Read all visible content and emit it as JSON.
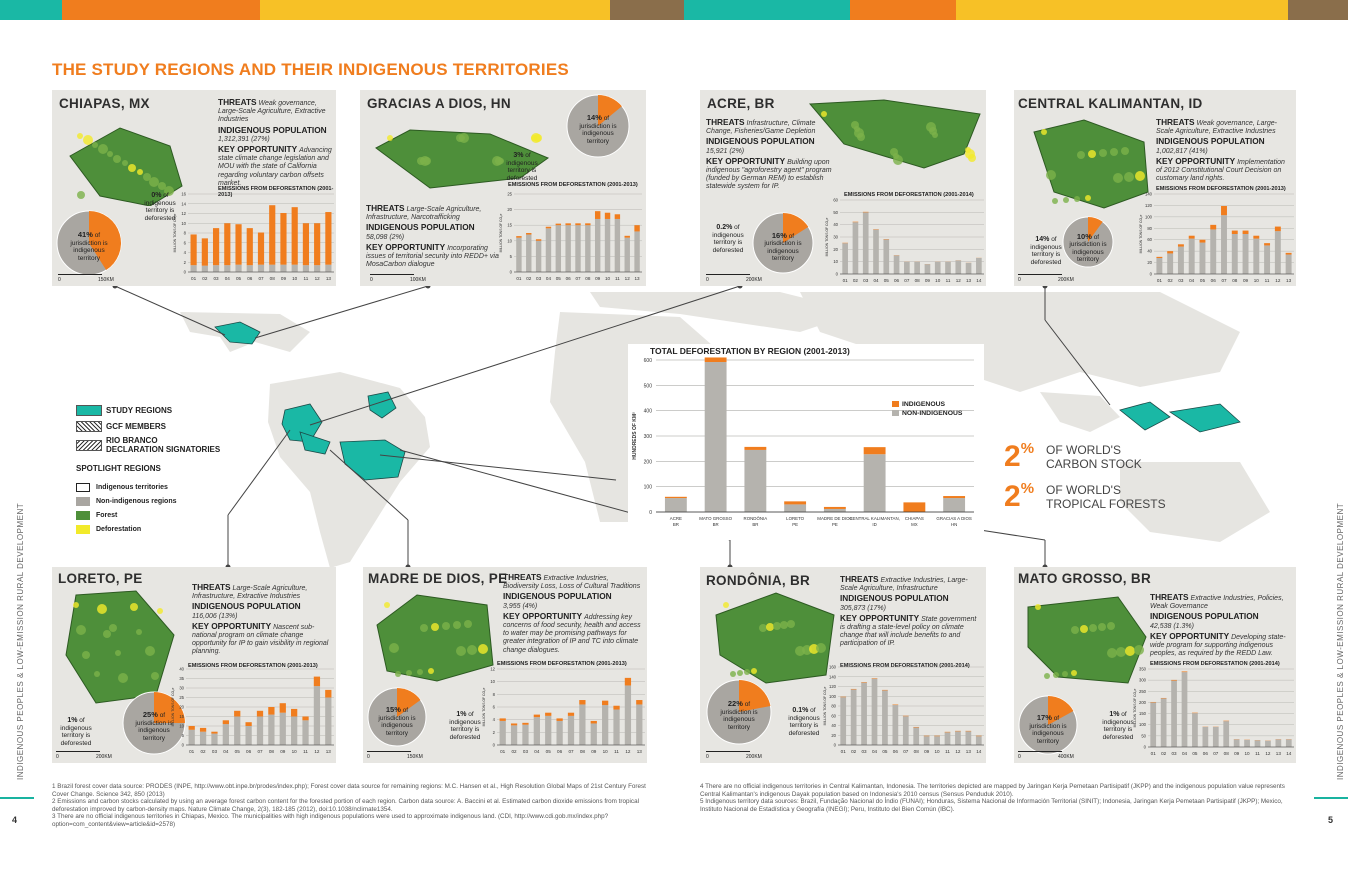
{
  "header": {
    "title": "THE STUDY REGIONS AND THEIR INDIGENOUS TERRITORIES"
  },
  "colors": {
    "teal": "#1ab8a5",
    "orange": "#f07d1e",
    "yellow": "#f7c126",
    "brown": "#8a6e4b",
    "bar_grey": "#b5b3ae",
    "forest": "#4e8f3a",
    "deforest": "#f2ea2a"
  },
  "regions": [
    {
      "id": "chiapas",
      "name": "CHIAPAS, MX",
      "threats": "Weak governance, Large-Scale Agriculture, Extractive Industries",
      "pop_label": "INDIGENOUS POPULATION",
      "pop": "1,312,391 (27%)",
      "opp": "Advancing state climate change legislation and MOU with the state of California regarding voluntary carbon offsets market.",
      "pie_pct": "41%",
      "pie_text": "of jurisdiction is indigenous territory",
      "def_pct": "0%",
      "def_text": "of indigenous territory is deforested",
      "em_title": "EMISSIONS FROM DEFORESTATION (2001-2013)",
      "ylabel": "MILLION TONS OF CO₂e",
      "scale": "150KM",
      "x": [
        "01",
        "02",
        "03",
        "04",
        "05",
        "06",
        "07",
        "08",
        "09",
        "10",
        "11",
        "12",
        "13"
      ],
      "non": [
        1.4,
        1.3,
        1.4,
        1.4,
        1.5,
        1.4,
        1.5,
        1.5,
        1.5,
        1.5,
        1.4,
        1.4,
        1.5
      ],
      "ind": [
        6.3,
        5.6,
        7.6,
        8.6,
        8.3,
        7.6,
        6.6,
        12.2,
        10.6,
        11.8,
        8.6,
        8.6,
        10.8
      ],
      "ymax": 16,
      "yticks": [
        0,
        2,
        4,
        6,
        8,
        10,
        12,
        14,
        16
      ],
      "pie_ratio": 0.41
    },
    {
      "id": "gracias",
      "name": "GRACIAS A DIOS, HN",
      "threats": "Large-Scale Agriculture, Infrastructure, Narcotrafficking",
      "pop_label": "INDIGENOUS POPULATION",
      "pop": "58,098 (2%)",
      "opp": "Incorporating issues of territorial security into REDD+ via MosaCarbon dialogue",
      "pie_pct": "14%",
      "pie_text": "of jurisdiction is indigenous territory",
      "def_pct": "3%",
      "def_text": "of indigenous territory is deforested",
      "em_title": "EMISSIONS FROM DEFORESTATION (2001-2013)",
      "ylabel": "MILLION TONS OF CO₂e",
      "scale": "100KM",
      "x": [
        "01",
        "02",
        "03",
        "04",
        "05",
        "06",
        "07",
        "08",
        "09",
        "10",
        "11",
        "12",
        "13"
      ],
      "non": [
        11,
        12,
        10,
        14,
        15,
        15,
        15,
        15,
        17,
        17,
        17,
        11,
        13
      ],
      "ind": [
        0.5,
        0.5,
        0.5,
        0.5,
        0.5,
        0.6,
        0.6,
        0.6,
        2.5,
        2,
        1.5,
        0.6,
        2
      ],
      "ymax": 25,
      "yticks": [
        0,
        5,
        10,
        15,
        20,
        25
      ],
      "pie_ratio": 0.14
    },
    {
      "id": "acre",
      "name": "ACRE, BR",
      "threats": "Infrastructure, Climate Change, Fisheries/Game Depletion",
      "pop_label": "INDIGENOUS POPULATION",
      "pop": "15,921 (2%)",
      "opp": "Building upon indigenous \"agroforestry agent\" program (funded by German REM) to establish statewide system for IP.",
      "pie_pct": "16%",
      "pie_text": "of jurisdiction is indigenous territory",
      "def_pct": "0.2%",
      "def_text": "of indigenous territory is deforested",
      "em_title": "EMISSIONS FROM DEFORESTATION (2001-2014)",
      "ylabel": "MILLION TONS OF CO₂e",
      "scale": "200KM",
      "x": [
        "01",
        "02",
        "03",
        "04",
        "05",
        "06",
        "07",
        "08",
        "09",
        "10",
        "11",
        "12",
        "13",
        "14"
      ],
      "non": [
        25,
        42,
        50,
        36,
        28,
        15,
        10,
        10,
        8,
        10,
        10,
        11,
        9,
        13
      ],
      "ind": [
        0.3,
        0.4,
        0.4,
        0.3,
        0.3,
        0.2,
        0.1,
        0.1,
        0.1,
        0.1,
        0.1,
        0.1,
        0.1,
        0.1
      ],
      "ymax": 60,
      "yticks": [
        0,
        10,
        20,
        30,
        40,
        50,
        60
      ],
      "pie_ratio": 0.16
    },
    {
      "id": "kalimantan",
      "name": "CENTRAL KALIMANTAN, ID",
      "threats": "Weak governance, Large-Scale Agriculture, Extractive Industries",
      "pop_label": "INDIGENOUS POPULATION",
      "pop": "1,002,817 (41%)",
      "opp": "Implementation of 2012 Constitutional Court Decision on customary land rights.",
      "pie_pct": "10%",
      "pie_text": "of jurisdiction is indigenous territory",
      "def_pct": "14%",
      "def_text": "of indigenous territory is deforested",
      "em_title": "EMISSIONS FROM DEFORESTATION (2001-2013)",
      "ylabel": "MILLION TONS OF CO₂e",
      "scale": "200KM",
      "x": [
        "01",
        "02",
        "03",
        "04",
        "05",
        "06",
        "07",
        "08",
        "09",
        "10",
        "11",
        "12",
        "13"
      ],
      "non": [
        28,
        36,
        48,
        62,
        55,
        78,
        103,
        70,
        70,
        62,
        50,
        75,
        34
      ],
      "ind": [
        2,
        4,
        4,
        5,
        5,
        8,
        16,
        6,
        6,
        5,
        4,
        8,
        3
      ],
      "ymax": 140,
      "yticks": [
        0,
        20,
        40,
        60,
        80,
        100,
        120,
        140
      ],
      "pie_ratio": 0.1
    },
    {
      "id": "loreto",
      "name": "LORETO, PE",
      "threats": "Large-Scale Agriculture, Infrastructure, Extractive Industries",
      "pop_label": "INDIGENOUS POPULATION",
      "pop": "116,006 (13%)",
      "opp": "Nascent sub-national program on climate change opportunity for IP to gain visibility in regional planning.",
      "pie_pct": "25%",
      "pie_text": "of jurisdiction is indigenous territory",
      "def_pct": "1%",
      "def_text": "of indigenous territory is deforested",
      "em_title": "EMISSIONS FROM DEFORESTATION (2001-2013)",
      "ylabel": "MILLION TONS OF CO₂e",
      "scale": "200KM",
      "x": [
        "01",
        "02",
        "03",
        "04",
        "05",
        "06",
        "07",
        "08",
        "09",
        "10",
        "11",
        "12",
        "13"
      ],
      "non": [
        8,
        7,
        6,
        11,
        15,
        10,
        15,
        16,
        17,
        15,
        13,
        31,
        25
      ],
      "ind": [
        2,
        2,
        1,
        2,
        3,
        2,
        3,
        4,
        5,
        4,
        2,
        5,
        4
      ],
      "ymax": 40,
      "yticks": [
        0,
        5,
        10,
        15,
        20,
        25,
        30,
        35,
        40
      ],
      "pie_ratio": 0.25
    },
    {
      "id": "madre",
      "name": "MADRE DE DIOS, PE",
      "threats": "Extractive Industries, Biodiversity Loss, Loss of Cultural Traditions",
      "pop_label": "INDIGENOUS POPULATION",
      "pop": "3,955 (4%)",
      "opp": "Addressing key concerns of food security, health and access to water may be promising pathways for greater integration of IP and TC into climate change dialogues.",
      "pie_pct": "15%",
      "pie_text": "of jurisdiction is indigenous territory",
      "def_pct": "1%",
      "def_text": "of indigenous territory is deforested",
      "em_title": "EMISSIONS FROM DEFORESTATION (2001-2013)",
      "ylabel": "MILLION TONS OF CO₂e",
      "scale": "150KM",
      "x": [
        "01",
        "02",
        "03",
        "04",
        "05",
        "06",
        "07",
        "08",
        "09",
        "10",
        "11",
        "12",
        "13"
      ],
      "non": [
        3.8,
        3.1,
        3.2,
        4.4,
        4.6,
        3.8,
        4.6,
        6.4,
        3.4,
        6.3,
        5.6,
        9.4,
        6.4
      ],
      "ind": [
        0.4,
        0.3,
        0.3,
        0.4,
        0.5,
        0.4,
        0.5,
        0.7,
        0.4,
        0.7,
        0.6,
        1.2,
        0.7
      ],
      "ymax": 12,
      "yticks": [
        0,
        2,
        4,
        6,
        8,
        10,
        12
      ],
      "pie_ratio": 0.15
    },
    {
      "id": "rondonia",
      "name": "RONDÔNIA, BR",
      "threats": "Extractive Industries, Large-Scale Agriculture, Infrastructure",
      "pop_label": "INDIGENOUS POPULATION",
      "pop": "305,873 (17%)",
      "opp": "State government is drafting a state-level policy on climate change that will include benefits to and participation of IP.",
      "pie_pct": "22%",
      "pie_text": "of jurisdiction is indigenous territory",
      "def_pct": "0.1%",
      "def_text": "of indigenous territory is deforested",
      "em_title": "EMISSIONS FROM DEFORESTATION (2001-2014)",
      "ylabel": "MILLION TONS OF CO₂e",
      "scale": "200KM",
      "x": [
        "01",
        "02",
        "03",
        "04",
        "05",
        "06",
        "07",
        "08",
        "09",
        "10",
        "11",
        "12",
        "13",
        "14"
      ],
      "non": [
        98,
        114,
        128,
        136,
        112,
        82,
        59,
        36,
        18,
        18,
        26,
        28,
        28,
        18
      ],
      "ind": [
        1,
        1,
        1,
        1,
        1,
        1,
        1,
        1,
        1,
        1,
        1,
        1,
        1,
        1
      ],
      "ymax": 160,
      "yticks": [
        0,
        20,
        40,
        60,
        80,
        100,
        120,
        140,
        160
      ],
      "pie_ratio": 0.22
    },
    {
      "id": "mato",
      "name": "MATO GROSSO, BR",
      "threats": "Extractive Industries, Policies, Weak Governance",
      "pop_label": "INDIGENOUS POPULATION",
      "pop": "42,538 (1.3%)",
      "opp": "Developing state-wide program for supporting indigenous peoples, as required by the REDD Law.",
      "pie_pct": "17%",
      "pie_text": "of jurisdiction is indigenous territory",
      "def_pct": "1%",
      "def_text": "of indigenous territory is deforested",
      "em_title": "EMISSIONS FROM DEFORESTATION (2001-2014)",
      "ylabel": "MILLION TONS OF CO₂e",
      "scale": "400KM",
      "x": [
        "01",
        "02",
        "03",
        "04",
        "05",
        "06",
        "07",
        "08",
        "09",
        "10",
        "11",
        "12",
        "13",
        "14"
      ],
      "non": [
        200,
        218,
        298,
        336,
        152,
        90,
        90,
        116,
        34,
        32,
        30,
        28,
        34,
        34
      ],
      "ind": [
        2,
        2,
        3,
        3,
        2,
        1,
        1,
        2,
        1,
        1,
        1,
        1,
        1,
        1
      ],
      "ymax": 350,
      "yticks": [
        0,
        50,
        100,
        150,
        200,
        250,
        300,
        350
      ],
      "pie_ratio": 0.17
    }
  ],
  "labels": {
    "threats": "THREATS",
    "pop": "INDIGENOUS POPULATION",
    "opp": "KEY OPPORTUNITY"
  },
  "chart_data": {
    "type": "bar",
    "title": "TOTAL DEFORESTATION BY REGION (2001-2013)",
    "ylabel": "HUNDREDS OF KM²",
    "ylim": [
      0,
      600
    ],
    "yticks": [
      0,
      100,
      200,
      300,
      400,
      500,
      600
    ],
    "categories": [
      "ACRE BR",
      "MATO GROSSO BR",
      "RONDÔNIA BR",
      "LORETO PE",
      "MADRE DE DIOS PE",
      "CENTRAL KALIMANTAN, ID",
      "CHIAPAS MX",
      "GRACIAS A DIOS HN"
    ],
    "series": [
      {
        "name": "NON-INDIGENOUS",
        "values": [
          55,
          592,
          245,
          30,
          12,
          228,
          0,
          55
        ]
      },
      {
        "name": "INDIGENOUS",
        "values": [
          5,
          18,
          12,
          12,
          8,
          28,
          38,
          8
        ]
      }
    ],
    "legend_position": "right"
  },
  "legend": {
    "study_regions": "STUDY REGIONS",
    "gcf": "GCF MEMBERS",
    "rio_line1": "RIO BRANCO",
    "rio_line2": "DECLARATION SIGNATORIES",
    "spotlight": "SPOTLIGHT REGIONS",
    "ind_terr": "Indigenous territories",
    "non_ind": "Non-indigenous regions",
    "forest": "Forest",
    "deforest": "Deforestation"
  },
  "stats": [
    {
      "num": "2",
      "pct": "%",
      "line1": "OF WORLD'S",
      "line2": "CARBON STOCK"
    },
    {
      "num": "2",
      "pct": "%",
      "line1": "OF WORLD'S",
      "line2": "TROPICAL FORESTS"
    }
  ],
  "side_left": "INDIGENOUS PEOPLES & LOW-EMISSION RURAL DEVELOPMENT",
  "side_right": "INDIGENOUS PEOPLES & LOW-EMISSION RURAL DEVELOPMENT",
  "footnotes_left": [
    "1  Brazil forest cover data source: PRODES (INPE, http://www.obt.inpe.br/prodes/index.php); Forest cover data source for remaining regions: M.C. Hansen et al., High Resolution Global Maps of 21st Century Forest Cover Change. Science 342, 850 (2013)",
    "2  Emissions and carbon stocks calculated by using an average forest carbon content for the forested portion of each region. Carbon data source: A. Baccini et al. Estimated carbon dioxide emissions from tropical deforestation improved by carbon-density maps. Nature Climate Change, 2(3), 182-185 (2012), doi:10.1038/nclimate1354.",
    "3  There are no official indigenous territories in Chiapas, Mexico. The municipalities with high indigenous populations were used to approximate indigenous land. (CDI, http://www.cdi.gob.mx/index.php?option=com_content&view=article&id=2578)"
  ],
  "footnotes_right": [
    "4  There are no official indigenous territories in Central Kalimantan, Indonesia. The territories depicted are mapped by Jaringan Kerja Pemetaan Partisipatif (JKPP) and the indigenous population value represents Central Kalimantan's indigenous Dayak population based on Indonesia's 2010 census (Sensus Penduduk 2010).",
    "5  Indigenous territory data sources: Brazil, Fundação Nacional do Índio (FUNAI); Honduras, Sistema Nacional de Información Territorial (SINIT); Indonesia, Jaringan Kerja Pemetaan Partisipatif (JKPP); Mexico, Instituto Nacional de Estadística y Geografía (INEGI); Peru, Instituto del Bien Común (IBC)."
  ],
  "page_left": "4",
  "page_right": "5"
}
